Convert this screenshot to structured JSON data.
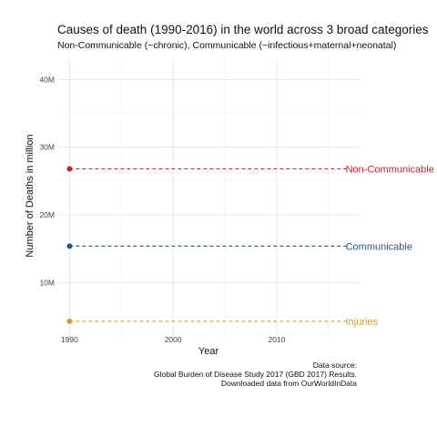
{
  "chart_data": {
    "type": "line",
    "title": "Causes of death (1990-2016) in the world across 3 broad categories",
    "subtitle": "Non-Communicable (~chronic), Communicable (~infectious+maternal+neonatal)",
    "xlabel": "Year",
    "ylabel": "Number of Deaths in million",
    "xlim": [
      1989,
      2018
    ],
    "ylim": [
      2,
      43
    ],
    "x_ticks": [
      1990,
      2000,
      2010
    ],
    "y_ticks": [
      10,
      20,
      30,
      40
    ],
    "y_tick_labels": [
      "10M",
      "20M",
      "30M",
      "40M"
    ],
    "grid": true,
    "legend": "none",
    "series": [
      {
        "name": "Non-Communicable",
        "color": "#c0282d",
        "x": [
          1990,
          2017
        ],
        "y": [
          26.8,
          26.8
        ]
      },
      {
        "name": "Communicable",
        "color": "#1f5a8a",
        "x": [
          1990,
          2017
        ],
        "y": [
          15.4,
          15.4
        ]
      },
      {
        "name": "Injuries",
        "color": "#c9a03a",
        "x": [
          1990,
          2017
        ],
        "y": [
          4.3,
          4.3
        ]
      }
    ],
    "caption": [
      "Data source:",
      "Global Burden of Disease Study 2017 (GBD 2017) Results.",
      "Downloaded data from OurWorldInData"
    ]
  }
}
